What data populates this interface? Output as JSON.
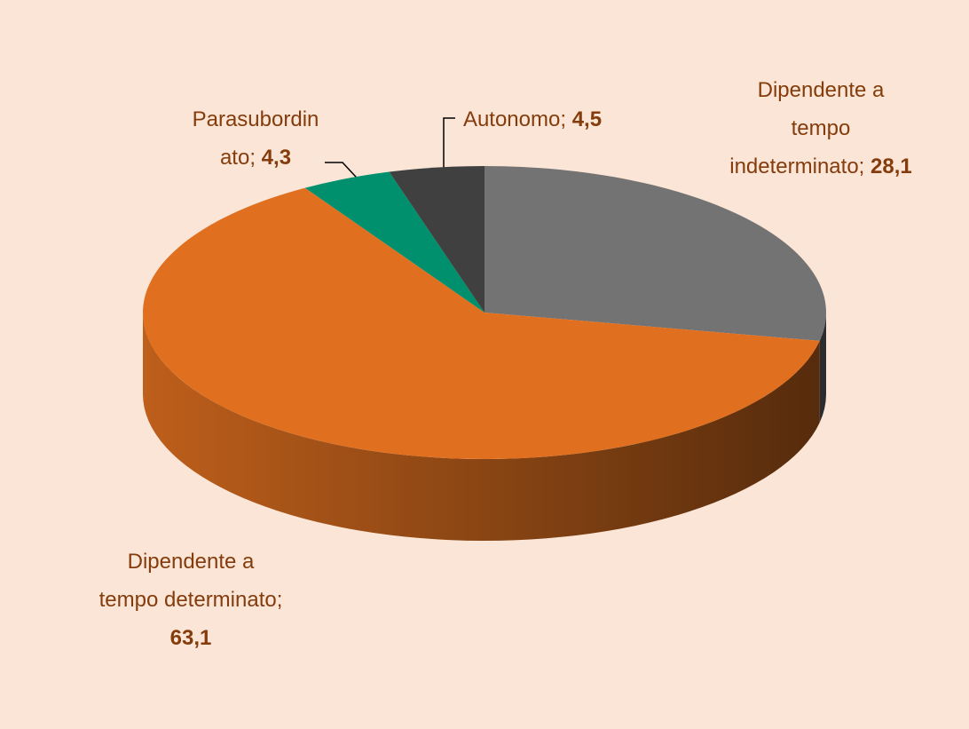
{
  "chart_data": {
    "type": "pie",
    "categories": [
      "Dipendente a tempo indeterminato",
      "Dipendente a tempo determinato",
      "Parasubordinato",
      "Autonomo"
    ],
    "values": [
      28.1,
      63.1,
      4.3,
      4.5
    ],
    "value_labels": [
      "28,1",
      "63,1",
      "4,3",
      "4,5"
    ],
    "label_separator": ";",
    "colors": [
      "#737373",
      "#E07020",
      "#00906E",
      "#404040"
    ],
    "background": "#FBE5D6"
  }
}
